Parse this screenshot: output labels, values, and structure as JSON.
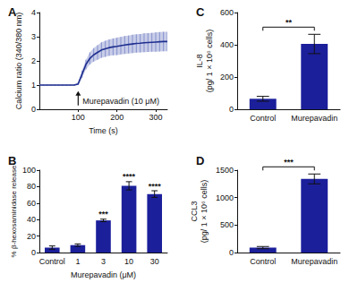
{
  "chart_data": [
    {
      "type": "line",
      "title": "A",
      "x_label": "Time (s)",
      "y_label": "Calcium ratio (340/380 nm)",
      "x": [
        0,
        10,
        20,
        30,
        40,
        50,
        60,
        70,
        80,
        90,
        100,
        110,
        120,
        130,
        140,
        150,
        160,
        170,
        180,
        190,
        200,
        210,
        220,
        230,
        240,
        250,
        260,
        270,
        280,
        290,
        300,
        310,
        320,
        330
      ],
      "values": [
        1.0,
        1.0,
        1.0,
        1.0,
        1.0,
        1.0,
        1.0,
        1.0,
        1.0,
        1.0,
        1.05,
        1.45,
        1.85,
        2.1,
        2.25,
        2.35,
        2.45,
        2.5,
        2.55,
        2.58,
        2.6,
        2.63,
        2.66,
        2.68,
        2.7,
        2.72,
        2.73,
        2.75,
        2.76,
        2.77,
        2.78,
        2.79,
        2.8,
        2.8
      ],
      "errors": [
        0.02,
        0.02,
        0.02,
        0.02,
        0.02,
        0.02,
        0.02,
        0.02,
        0.02,
        0.02,
        0.05,
        0.15,
        0.2,
        0.25,
        0.28,
        0.3,
        0.32,
        0.33,
        0.34,
        0.35,
        0.36,
        0.36,
        0.37,
        0.37,
        0.38,
        0.38,
        0.38,
        0.39,
        0.39,
        0.39,
        0.4,
        0.4,
        0.4,
        0.4
      ],
      "color": "#1f2f8f",
      "xlim": [
        0,
        330
      ],
      "xticks": [
        100,
        200,
        300
      ],
      "ylim": [
        0,
        4
      ],
      "yticks": [
        0,
        1,
        2,
        3,
        4
      ],
      "grid": false,
      "annotations": [
        {
          "text": "Murepavadin (10 μM)",
          "x": 100,
          "y": 0.75
        }
      ]
    },
    {
      "type": "bar",
      "title": "B",
      "x_label": "Murepavadin (μM)",
      "y_label": "% β-hexosaminidase release",
      "categories": [
        "Control",
        "1",
        "3",
        "10",
        "30"
      ],
      "values": [
        6,
        9,
        39,
        81,
        71
      ],
      "errors": [
        2,
        1.5,
        1.5,
        5,
        4
      ],
      "significance": [
        null,
        null,
        "***",
        "****",
        "****"
      ],
      "color": "#1b1f9a",
      "ylim": [
        0,
        100
      ],
      "yticks": [
        0,
        20,
        40,
        60,
        80,
        100
      ],
      "grid": false
    },
    {
      "type": "bar",
      "title": "C",
      "y_label": "IL-8\n(pg/ 1 × 10⁶ cells)",
      "categories": [
        "Control",
        "Murepavadin"
      ],
      "values": [
        65,
        405
      ],
      "errors": [
        15,
        60
      ],
      "significance": "**",
      "color": "#1b1f9a",
      "ylim": [
        0,
        600
      ],
      "yticks": [
        0,
        200,
        400,
        600
      ],
      "grid": false
    },
    {
      "type": "bar",
      "title": "D",
      "y_label": "CCL3\n(pg/ 1 × 10⁶ cells)",
      "categories": [
        "Control",
        "Murepavadin"
      ],
      "values": [
        90,
        1340
      ],
      "errors": [
        20,
        90
      ],
      "significance": "***",
      "color": "#1b1f9a",
      "ylim": [
        0,
        1500
      ],
      "yticks": [
        0,
        500,
        1000,
        1500
      ],
      "grid": false
    }
  ]
}
